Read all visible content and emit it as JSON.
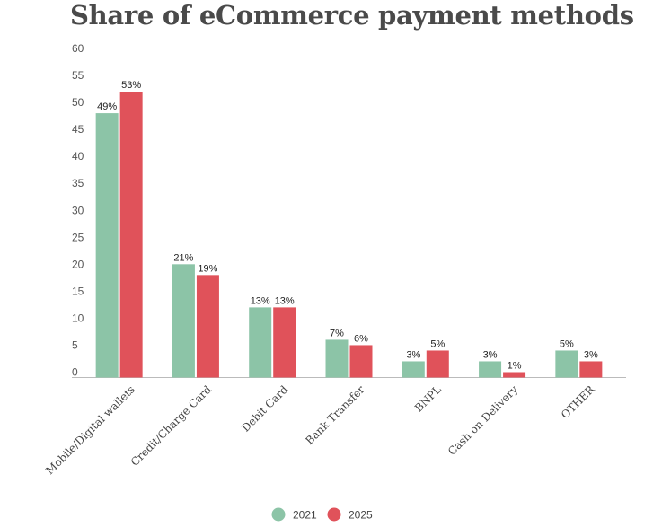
{
  "chart_data": {
    "type": "bar",
    "title": "Share of eCommerce payment methods",
    "categories": [
      "Mobile/Digital wallets",
      "Credit/Charge Card",
      "Debit Card",
      "Bank Transfer",
      "BNPL",
      "Cash on Delivery",
      "OTHER"
    ],
    "series": [
      {
        "name": "2021",
        "color": "#8cc4a7",
        "values": [
          49,
          21,
          13,
          7,
          3,
          3,
          5
        ],
        "labels": [
          "49%",
          "21%",
          "13%",
          "7%",
          "3%",
          "3%",
          "5%"
        ]
      },
      {
        "name": "2025",
        "color": "#e0525a",
        "values": [
          53,
          19,
          13,
          6,
          5,
          1,
          3
        ],
        "labels": [
          "53%",
          "19%",
          "13%",
          "6%",
          "5%",
          "1%",
          "3%"
        ]
      }
    ],
    "ylim": [
      0,
      60
    ],
    "yticks": [
      "0",
      "5",
      "10",
      "15",
      "20",
      "25",
      "30",
      "35",
      "40",
      "45",
      "50",
      "55",
      "60"
    ],
    "grid": false,
    "legend": "bottom-center"
  }
}
